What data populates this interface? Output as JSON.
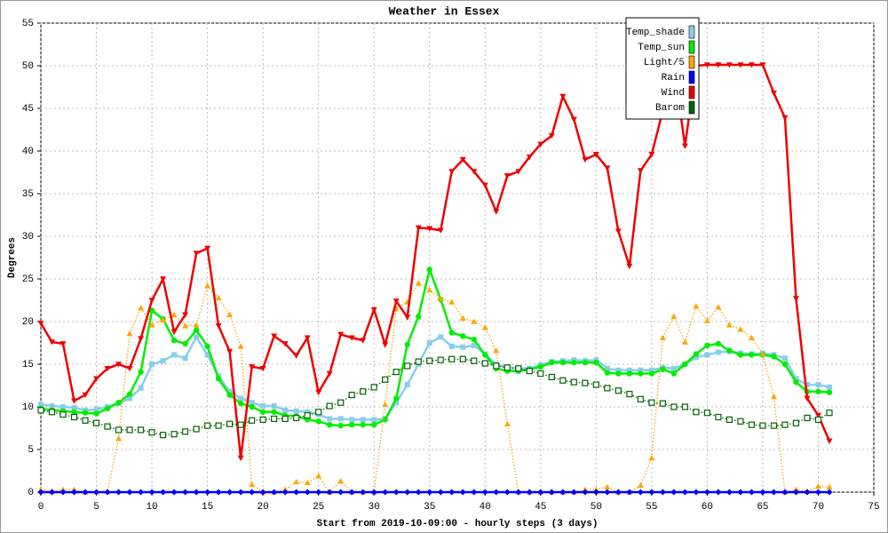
{
  "chart_data": {
    "type": "line",
    "title": "Weather in Essex",
    "x_label": "Start from 2019-10-09:00 - hourly steps (3 days)",
    "y_label": "Degrees",
    "x": [
      0,
      1,
      2,
      3,
      4,
      5,
      6,
      7,
      8,
      9,
      10,
      11,
      12,
      13,
      14,
      15,
      16,
      17,
      18,
      19,
      20,
      21,
      22,
      23,
      24,
      25,
      26,
      27,
      28,
      29,
      30,
      31,
      32,
      33,
      34,
      35,
      36,
      37,
      38,
      39,
      40,
      41,
      42,
      43,
      44,
      45,
      46,
      47,
      48,
      49,
      50,
      51,
      52,
      53,
      54,
      55,
      56,
      57,
      58,
      59,
      60,
      61,
      62,
      63,
      64,
      65,
      66,
      67,
      68,
      69,
      70,
      71
    ],
    "xlim": [
      0,
      75
    ],
    "xticks": [
      0,
      5,
      10,
      15,
      20,
      25,
      30,
      35,
      40,
      45,
      50,
      55,
      60,
      65,
      70,
      75
    ],
    "ylim": [
      0,
      55
    ],
    "yticks": [
      0,
      5,
      10,
      15,
      20,
      25,
      30,
      35,
      40,
      45,
      50,
      55
    ],
    "grid": true,
    "legend": "top-right",
    "series": [
      {
        "name": "Temp_shade",
        "color": "#87ceeb",
        "marker": "square",
        "line": "solid",
        "values": [
          10.3,
          10.1,
          10.0,
          9.9,
          9.6,
          9.7,
          10.0,
          10.4,
          11.0,
          12.2,
          15.0,
          15.4,
          16.1,
          15.7,
          18.2,
          16.1,
          13.6,
          11.8,
          11.0,
          10.5,
          10.1,
          10.1,
          9.6,
          9.5,
          9.4,
          9.1,
          8.6,
          8.6,
          8.5,
          8.5,
          8.5,
          8.6,
          10.5,
          12.6,
          15.0,
          17.5,
          18.2,
          17.1,
          17.0,
          17.2,
          16.2,
          15.0,
          14.6,
          14.5,
          14.5,
          14.9,
          15.3,
          15.4,
          15.5,
          15.4,
          15.5,
          14.5,
          14.3,
          14.3,
          14.3,
          14.3,
          14.6,
          14.5,
          15.0,
          15.8,
          16.1,
          16.4,
          16.5,
          16.3,
          16.2,
          16.3,
          16.1,
          15.7,
          13.3,
          12.6,
          12.6,
          12.3
        ]
      },
      {
        "name": "Temp_sun",
        "color": "#00ee00",
        "marker": "circle",
        "line": "solid",
        "values": [
          9.8,
          9.6,
          9.5,
          9.4,
          9.3,
          9.2,
          9.8,
          10.5,
          11.5,
          14.1,
          21.3,
          20.3,
          17.8,
          17.4,
          19.0,
          17.1,
          13.3,
          11.4,
          10.4,
          10.0,
          9.4,
          9.4,
          9.0,
          8.9,
          8.5,
          8.3,
          7.9,
          7.8,
          7.9,
          7.9,
          7.9,
          8.5,
          11.0,
          17.3,
          20.6,
          26.1,
          22.6,
          18.7,
          18.3,
          17.9,
          16.1,
          14.5,
          14.2,
          14.2,
          14.4,
          14.7,
          15.2,
          15.2,
          15.2,
          15.2,
          15.2,
          14.0,
          13.9,
          13.9,
          13.9,
          13.9,
          14.4,
          13.9,
          15.0,
          16.2,
          17.2,
          17.4,
          16.6,
          16.1,
          16.1,
          16.1,
          15.9,
          15.0,
          12.9,
          11.8,
          11.8,
          11.7
        ]
      },
      {
        "name": "Light/5",
        "color": "#ffa500",
        "marker": "triangle-up",
        "line": "dotted",
        "values": [
          0.3,
          0.1,
          0.3,
          0.3,
          0,
          0,
          0.1,
          6.3,
          18.6,
          21.6,
          19.6,
          20.2,
          20.8,
          19.5,
          19.6,
          24.2,
          22.8,
          20.8,
          17.1,
          0.9,
          0,
          0,
          0.3,
          1.2,
          1.1,
          1.9,
          0,
          1.3,
          0,
          0,
          0,
          10.3,
          21.5,
          22.3,
          24.5,
          23.7,
          22.7,
          22.3,
          20.4,
          20.0,
          19.3,
          16.6,
          8.0,
          0,
          0,
          0,
          0,
          0,
          0,
          0.3,
          0.3,
          0.6,
          0,
          0,
          0.8,
          4.0,
          18.1,
          20.6,
          17.6,
          21.8,
          20.1,
          21.7,
          19.6,
          19.1,
          18.1,
          16.2,
          11.2,
          0,
          0.3,
          0.1,
          0.7,
          0.6
        ]
      },
      {
        "name": "Rain",
        "color": "#0000ff",
        "marker": "star",
        "line": "solid",
        "values": [
          0,
          0,
          0,
          0,
          0,
          0,
          0,
          0,
          0,
          0,
          0,
          0,
          0,
          0,
          0,
          0,
          0,
          0,
          0,
          0,
          0,
          0,
          0,
          0,
          0,
          0,
          0,
          0,
          0,
          0,
          0,
          0,
          0,
          0,
          0,
          0,
          0,
          0,
          0,
          0,
          0,
          0,
          0,
          0,
          0,
          0,
          0,
          0,
          0,
          0,
          0,
          0,
          0,
          0,
          0,
          0,
          0,
          0,
          0,
          0,
          0,
          0,
          0,
          0,
          0,
          0,
          0,
          0,
          0,
          0,
          0,
          0
        ]
      },
      {
        "name": "Wind",
        "color": "#ee0000",
        "marker": "triangle-down",
        "line": "solid",
        "values": [
          19.8,
          17.6,
          17.4,
          10.7,
          11.4,
          13.3,
          14.5,
          15.0,
          14.5,
          18.0,
          22.5,
          25.0,
          18.8,
          20.8,
          28.0,
          28.6,
          19.5,
          16.5,
          4.0,
          14.7,
          14.5,
          18.3,
          17.4,
          16.0,
          18.1,
          11.7,
          13.9,
          18.5,
          18.1,
          17.8,
          21.4,
          17.3,
          22.4,
          20.5,
          31.0,
          30.9,
          30.7,
          37.6,
          39.0,
          37.6,
          36.0,
          32.9,
          37.1,
          37.6,
          39.3,
          40.8,
          41.8,
          46.4,
          43.7,
          39.0,
          39.6,
          38.0,
          30.6,
          26.5,
          37.7,
          39.6,
          44.7,
          50.0,
          40.6,
          50.0,
          50.1,
          50.1,
          50.1,
          50.1,
          50.1,
          50.1,
          46.8,
          43.9,
          22.7,
          11.0,
          9.0,
          6.0
        ]
      },
      {
        "name": "Barom",
        "color": "#006400",
        "marker": "open-square",
        "line": "dotted",
        "values": [
          9.6,
          9.4,
          9.1,
          8.8,
          8.4,
          8.1,
          7.7,
          7.3,
          7.3,
          7.3,
          7.0,
          6.7,
          6.8,
          7.1,
          7.4,
          7.8,
          7.8,
          8.0,
          7.9,
          8.4,
          8.5,
          8.6,
          8.6,
          8.7,
          9.0,
          9.4,
          10.1,
          10.5,
          11.4,
          11.8,
          12.3,
          13.2,
          14.1,
          14.8,
          15.3,
          15.4,
          15.5,
          15.6,
          15.6,
          15.4,
          15.1,
          14.8,
          14.6,
          14.5,
          14.2,
          13.9,
          13.5,
          13.1,
          12.9,
          12.8,
          12.6,
          12.2,
          11.9,
          11.5,
          10.9,
          10.5,
          10.4,
          10.0,
          10.0,
          9.4,
          9.3,
          8.8,
          8.5,
          8.3,
          7.9,
          7.8,
          7.8,
          7.9,
          8.1,
          8.7,
          8.5,
          9.3
        ]
      }
    ]
  }
}
